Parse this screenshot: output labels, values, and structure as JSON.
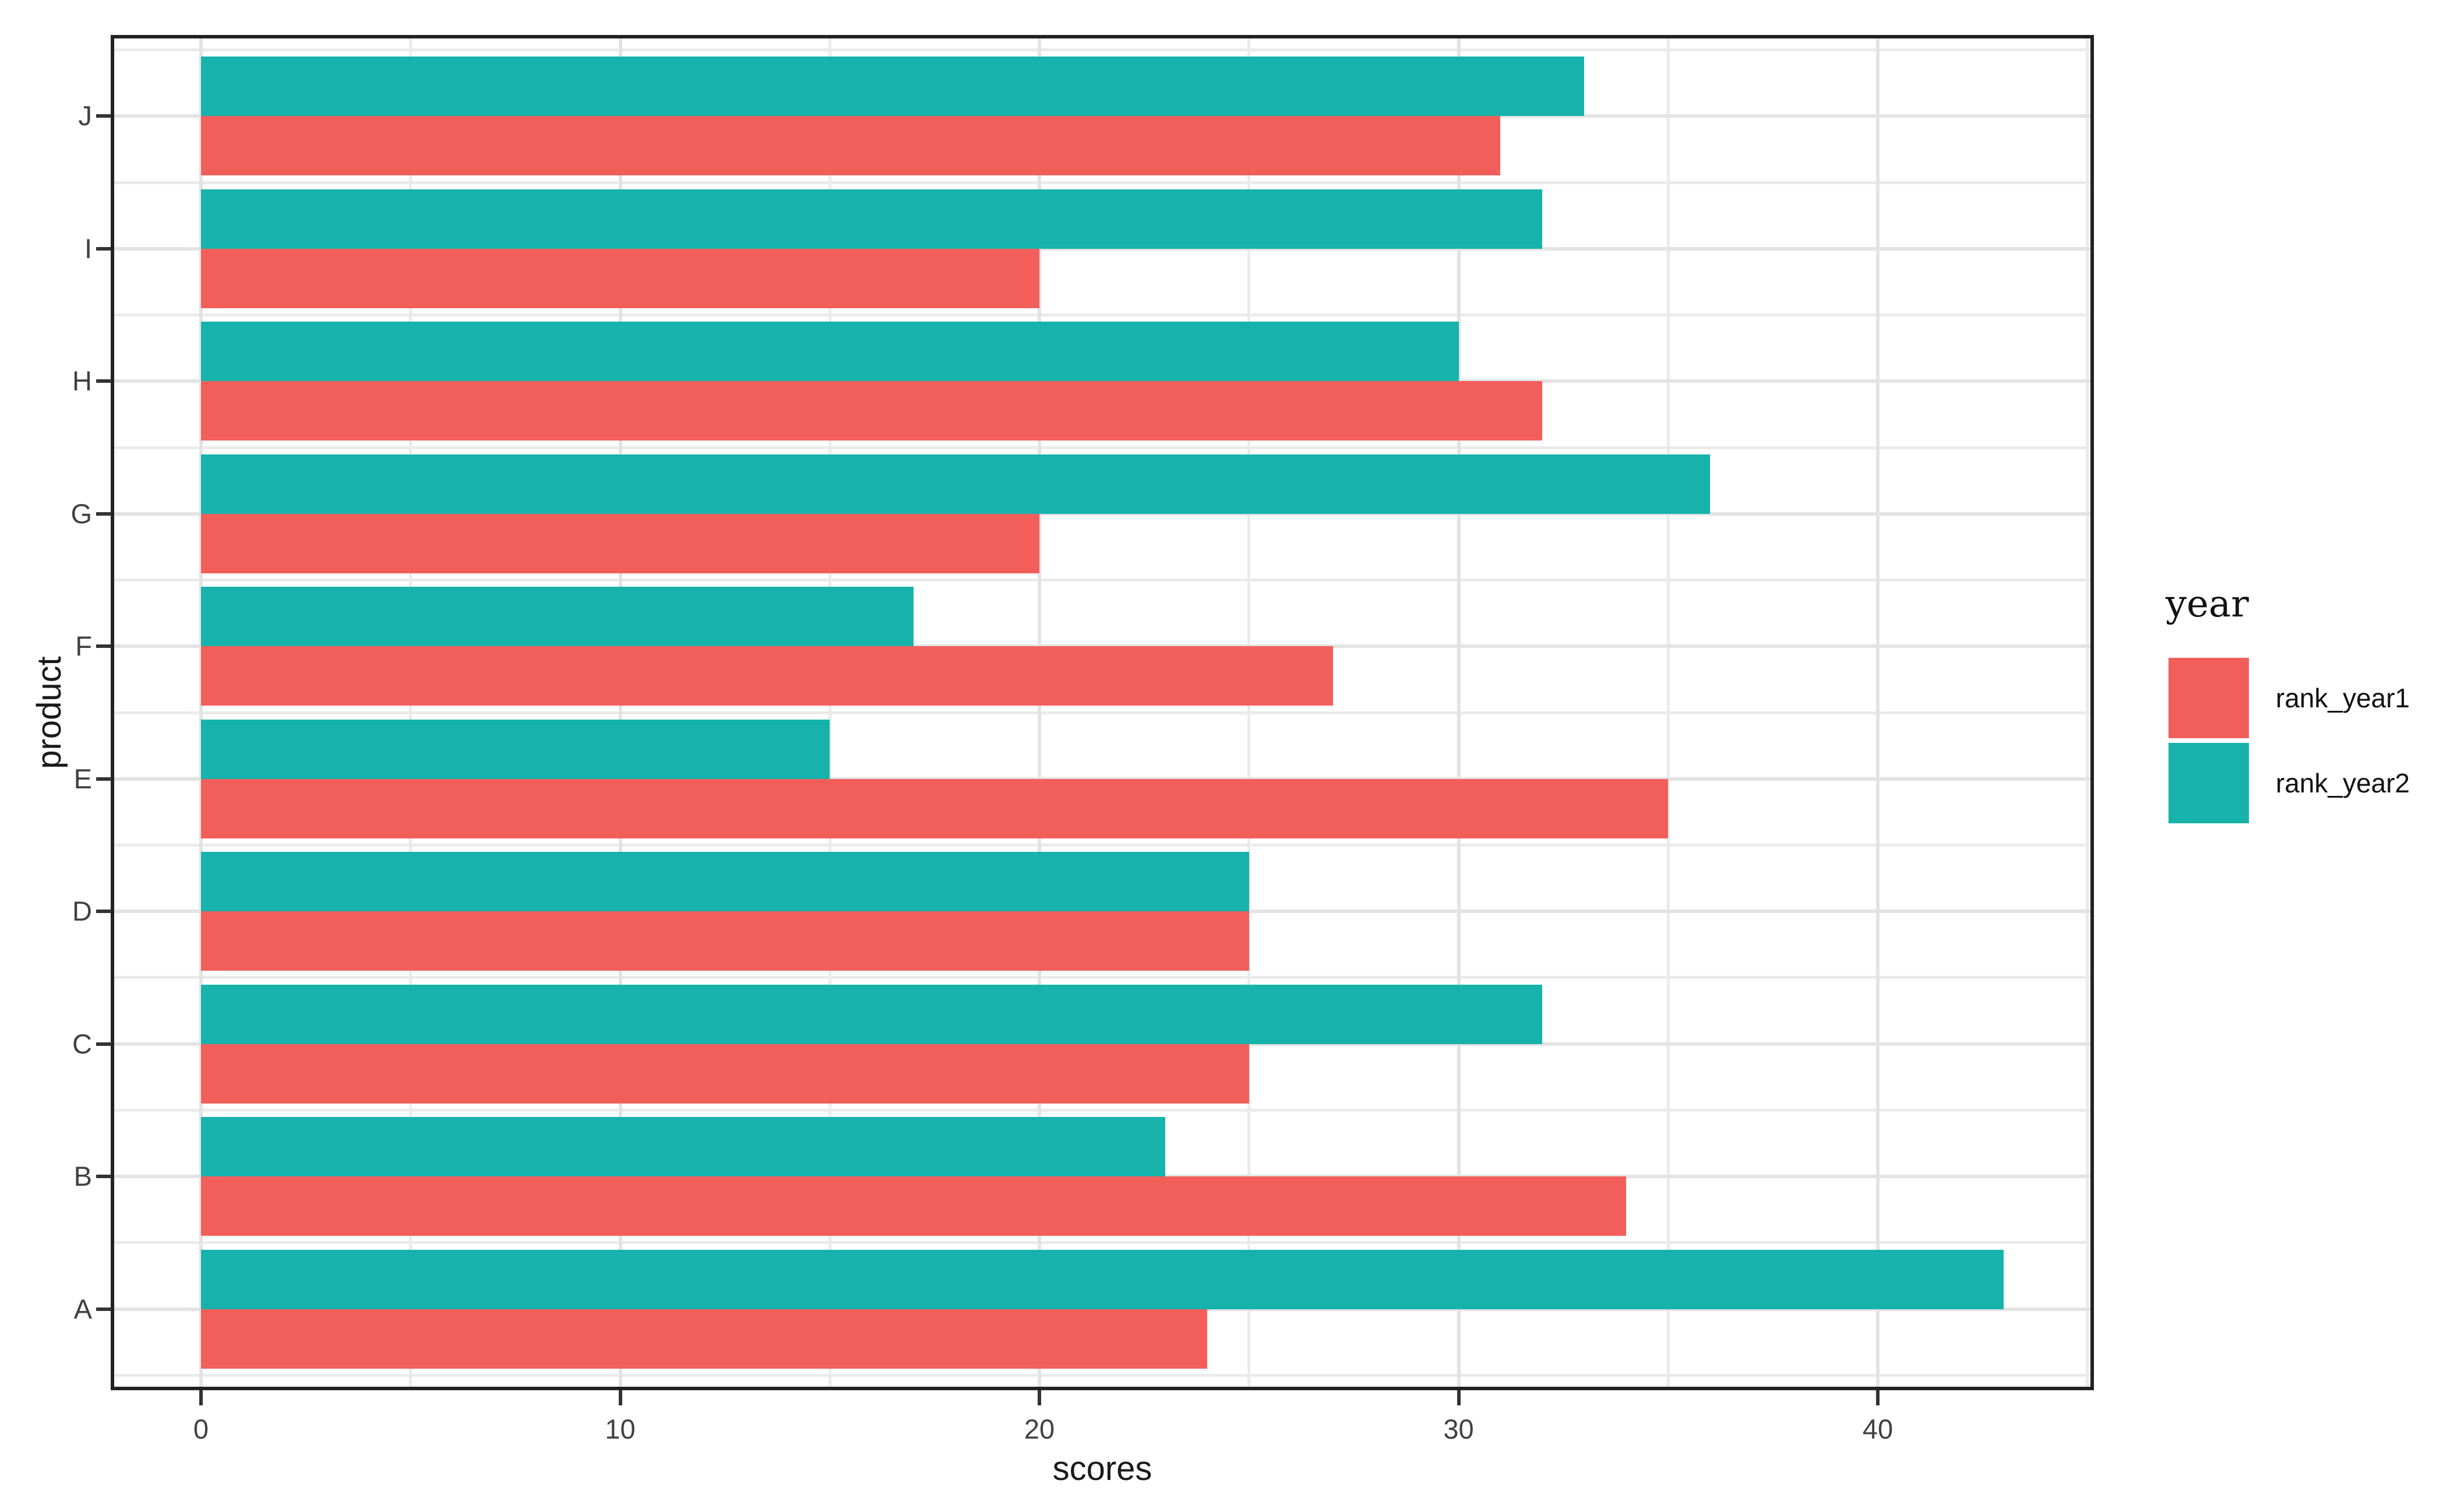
{
  "figure": {
    "x_axis_title": "scores",
    "y_axis_title": "product",
    "background": "#ffffff",
    "panel_border_color": "#222222",
    "gridline_major_color": "#e3e3e3",
    "gridline_minor_color": "#ebebeb",
    "tick_color": "#333333",
    "tick_label_color": "#404040"
  },
  "legend": {
    "title": "year",
    "position": "right",
    "entries": [
      {
        "label": "rank_year1",
        "color": "#f25f5b"
      },
      {
        "label": "rank_year2",
        "color": "#17b2ac"
      }
    ]
  },
  "chart_data": {
    "type": "bar",
    "orientation": "horizontal",
    "title": "",
    "xlabel": "scores",
    "ylabel": "product",
    "categories": [
      "A",
      "B",
      "C",
      "D",
      "E",
      "F",
      "G",
      "H",
      "I",
      "J"
    ],
    "series": [
      {
        "name": "rank_year1",
        "color": "#f25f5b",
        "values": [
          24,
          34,
          25,
          25,
          35,
          27,
          20,
          32,
          20,
          31
        ]
      },
      {
        "name": "rank_year2",
        "color": "#17b2ac",
        "values": [
          43,
          23,
          32,
          25,
          15,
          17,
          36,
          30,
          32,
          33
        ]
      }
    ],
    "x_ticks": [
      0,
      10,
      20,
      30,
      40
    ],
    "x_minor_breaks": [
      5,
      15,
      25,
      35,
      45
    ],
    "xlim": [
      -2.1,
      45.1
    ],
    "grid": true,
    "legend_title": "year",
    "legend_position": "right",
    "group_order_note": "within each category rank_year2 teal bar drawn above rank_year1 red bar"
  }
}
